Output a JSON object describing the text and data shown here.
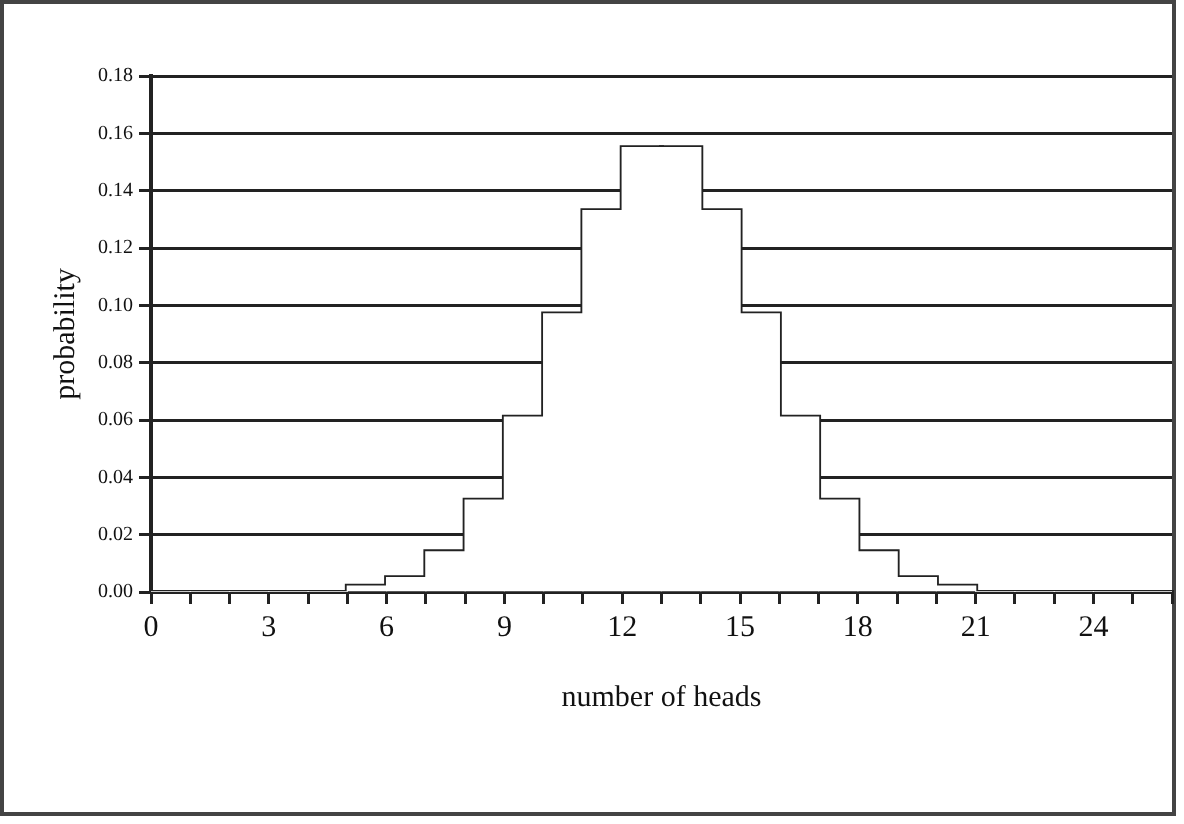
{
  "chart_data": {
    "type": "histogram",
    "xlabel": "number of heads",
    "ylabel": "probability",
    "bins": [
      0,
      1,
      2,
      3,
      4,
      5,
      6,
      7,
      8,
      9,
      10,
      11,
      12,
      13,
      14,
      15,
      16,
      17,
      18,
      19,
      20,
      21,
      22,
      23,
      24,
      25,
      26
    ],
    "values": [
      0,
      0,
      0,
      0,
      0,
      0.002,
      0.005,
      0.014,
      0.032,
      0.061,
      0.097,
      0.133,
      0.155,
      0.155,
      0.133,
      0.097,
      0.061,
      0.032,
      0.014,
      0.005,
      0.002,
      0,
      0,
      0,
      0,
      0
    ],
    "color": "#ffffff",
    "xlim": [
      0,
      26
    ],
    "xticks": [
      0,
      {
        "value": 1,
        "label": null
      },
      {
        "value": 2,
        "label": null
      },
      3,
      {
        "value": 4,
        "label": null
      },
      {
        "value": 5,
        "label": null
      },
      6,
      {
        "value": 7,
        "label": null
      },
      {
        "value": 8,
        "label": null
      },
      9,
      {
        "value": 10,
        "label": null
      },
      {
        "value": 11,
        "label": null
      },
      12,
      {
        "value": 13,
        "label": null
      },
      {
        "value": 14,
        "label": null
      },
      15,
      {
        "value": 16,
        "label": null
      },
      {
        "value": 17,
        "label": null
      },
      18,
      {
        "value": 19,
        "label": null
      },
      {
        "value": 20,
        "label": null
      },
      21,
      {
        "value": 22,
        "label": null
      },
      {
        "value": 23,
        "label": null
      },
      24,
      {
        "value": 25,
        "label": null
      },
      {
        "value": 26,
        "label": null
      }
    ],
    "ylim": [
      0,
      0.18
    ],
    "yticks": [
      {
        "value": 0,
        "label": "0.00"
      },
      {
        "value": 0.02,
        "label": "0.02"
      },
      {
        "value": 0.04,
        "label": "0.04"
      },
      {
        "value": 0.06,
        "label": "0.06"
      },
      {
        "value": 0.08,
        "label": "0.08"
      },
      {
        "value": 0.1,
        "label": "0.10"
      },
      {
        "value": 0.12,
        "label": "0.12"
      },
      {
        "value": 0.14,
        "label": "0.14"
      },
      {
        "value": 0.16,
        "label": "0.16"
      },
      {
        "value": 0.18,
        "label": "0.18"
      }
    ],
    "grid": "y",
    "legend": false
  }
}
